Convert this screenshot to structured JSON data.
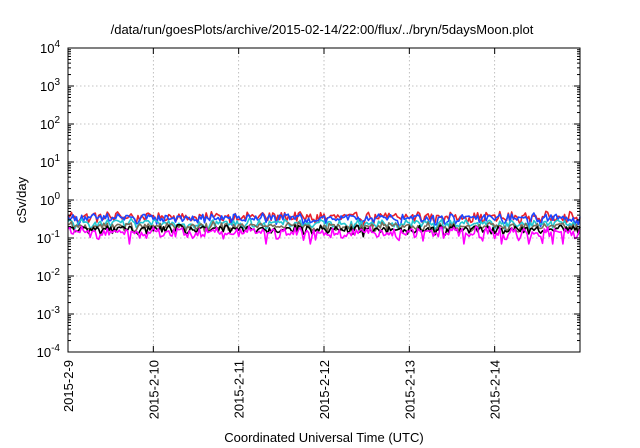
{
  "chart_data": {
    "type": "line",
    "title": "/data/run/goesPlots/archive/2015-02-14/22:00/flux/../bryn/5daysMoon.plot",
    "xlabel": "Coordinated Universal Time (UTC)",
    "ylabel": "cSv/day",
    "yscale": "log",
    "ylim": [
      0.0001,
      10000
    ],
    "xlim": [
      "2015-02-09",
      "2015-02-15"
    ],
    "grid": true,
    "x_ticks": [
      "2015-2-9",
      "2015-2-10",
      "2015-2-11",
      "2015-2-12",
      "2015-2-13",
      "2015-2-14"
    ],
    "y_ticks": [
      {
        "base": "10",
        "exp": "4"
      },
      {
        "base": "10",
        "exp": "3"
      },
      {
        "base": "10",
        "exp": "2"
      },
      {
        "base": "10",
        "exp": "1"
      },
      {
        "base": "10",
        "exp": "0"
      },
      {
        "base": "10",
        "exp": "-1"
      },
      {
        "base": "10",
        "exp": "-2"
      },
      {
        "base": "10",
        "exp": "-3"
      },
      {
        "base": "10",
        "exp": "-4"
      }
    ],
    "series": [
      {
        "color": "#e8202a",
        "base": 0.36,
        "amp": 0.18,
        "dips": false
      },
      {
        "color": "#1a46ff",
        "base": 0.33,
        "amp": 0.16,
        "dips": false
      },
      {
        "color": "#21c7d2",
        "base": 0.24,
        "amp": 0.1,
        "dips": false
      },
      {
        "color": "#7a6e5a",
        "base": 0.2,
        "amp": 0.08,
        "dips": false
      },
      {
        "color": "#000000",
        "base": 0.17,
        "amp": 0.07,
        "dips": false
      },
      {
        "color": "#ff00ff",
        "base": 0.14,
        "amp": 0.08,
        "dips": true
      }
    ]
  }
}
